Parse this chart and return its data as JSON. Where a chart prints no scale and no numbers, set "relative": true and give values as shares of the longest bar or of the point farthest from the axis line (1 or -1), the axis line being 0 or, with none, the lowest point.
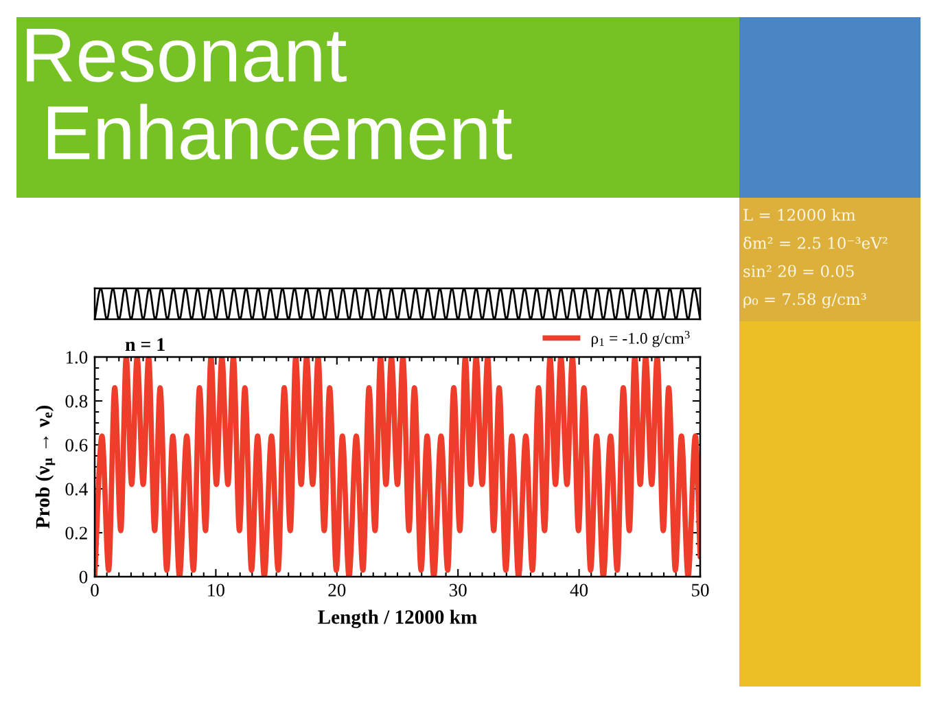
{
  "chart_data": [
    {
      "type": "line",
      "title": "Resonant\n Enhancement",
      "annotations": [
        "L = 12000 km",
        "δm² = 2.5 10⁻³eV²",
        "sin² 2θ = 0.05",
        "ρ₀ = 7.58 g/cm³"
      ],
      "relative": true,
      "categories": [
        null,
        null,
        null,
        null,
        null,
        null,
        null,
        null,
        null,
        null,
        null,
        null,
        null,
        null,
        null,
        null,
        null,
        null,
        null,
        null,
        null,
        null,
        null,
        null,
        null,
        null,
        null,
        null,
        null,
        null,
        null,
        null,
        null,
        null,
        null,
        null,
        null,
        null,
        null,
        null,
        null,
        null,
        null,
        null,
        null,
        null,
        null,
        null,
        null,
        null,
        null,
        null,
        null,
        null,
        null,
        null,
        null,
        null,
        null,
        null,
        null,
        null,
        null,
        null,
        null,
        null,
        null,
        null,
        null,
        null,
        null,
        null,
        null,
        null,
        null,
        null,
        null,
        null,
        null,
        null,
        null,
        null,
        null,
        null,
        null,
        null,
        null,
        null,
        null,
        null,
        null,
        null,
        null,
        null,
        null,
        null,
        null,
        null,
        null,
        null,
        null
      ],
      "series": [
        {
          "color": "#000000",
          "values": [
            0,
            1,
            0,
            1,
            0,
            1,
            0,
            1,
            0,
            1,
            0,
            1,
            0,
            1,
            0,
            1,
            0,
            1,
            0,
            1,
            0,
            1,
            0,
            1,
            0,
            1,
            0,
            1,
            0,
            1,
            0,
            1,
            0,
            1,
            0,
            1,
            0,
            1,
            0,
            1,
            0,
            1,
            0,
            1,
            0,
            1,
            0,
            1,
            0,
            1,
            0,
            1,
            0,
            1,
            0,
            1,
            0,
            1,
            0,
            1,
            0,
            1,
            0,
            1,
            0,
            1,
            0,
            1,
            0,
            1,
            0,
            1,
            0,
            1,
            0,
            1,
            0,
            1,
            0,
            1,
            0,
            1,
            0,
            1,
            0,
            1,
            0,
            1,
            0,
            1,
            0,
            1,
            0,
            1,
            0,
            1,
            0,
            1,
            0,
            1,
            0
          ]
        }
      ]
    },
    {
      "type": "line",
      "xlabel": "Length / 12000 km",
      "ylabel": "Prob (ν$_{μ}$ → ν$_{e}$)",
      "annotations": [
        "n = 1"
      ],
      "legend": "top right",
      "x": [
        0,
        0.6,
        1.15,
        1.65,
        2.15,
        2.6,
        3.05,
        3.5,
        4.0,
        4.45,
        4.95,
        5.4,
        5.95,
        6.45,
        7,
        7.6,
        8.15,
        8.65,
        9.15,
        9.6,
        10.05,
        10.5,
        11.0,
        11.45,
        11.95,
        12.4,
        12.95,
        13.45,
        14,
        14.6,
        15.15,
        15.65,
        16.15,
        16.6,
        17.05,
        17.5,
        18.0,
        18.45,
        18.95,
        19.4,
        19.95,
        20.45,
        21,
        21.6,
        22.15,
        22.65,
        23.15,
        23.6,
        24.05,
        24.5,
        25.0,
        25.45,
        25.95,
        26.4,
        26.95,
        27.45,
        28,
        28.6,
        29.15,
        29.65,
        30.15,
        30.6,
        31.05,
        31.5,
        32.0,
        32.45,
        32.95,
        33.4,
        33.95,
        34.45,
        35,
        35.6,
        36.15,
        36.65,
        37.15,
        37.6,
        38.05,
        38.5,
        39.0,
        39.45,
        39.95,
        40.4,
        40.95,
        41.45,
        42,
        42.6,
        43.15,
        43.65,
        44.15,
        44.6,
        45.05,
        45.5,
        46.0,
        46.45,
        46.95,
        47.4,
        47.95,
        48.45,
        49,
        49.6,
        50
      ],
      "series": [
        {
          "name": "ρ$_{1}$ = -1.0 g/cm$^{3}$",
          "color": "#ef3d2b",
          "values": [
            0,
            0.64,
            0.03,
            0.86,
            0.21,
            1.0,
            0.42,
            1.0,
            0.42,
            1.0,
            0.21,
            0.86,
            0.03,
            0.64,
            0,
            0.64,
            0.03,
            0.86,
            0.21,
            1.0,
            0.42,
            1.0,
            0.42,
            1.0,
            0.21,
            0.86,
            0.03,
            0.64,
            0,
            0.64,
            0.03,
            0.86,
            0.21,
            1.0,
            0.42,
            1.0,
            0.42,
            1.0,
            0.21,
            0.86,
            0.03,
            0.64,
            0,
            0.64,
            0.03,
            0.86,
            0.21,
            1.0,
            0.42,
            1.0,
            0.42,
            1.0,
            0.21,
            0.86,
            0.03,
            0.64,
            0,
            0.64,
            0.03,
            0.86,
            0.21,
            1.0,
            0.42,
            1.0,
            0.42,
            1.0,
            0.21,
            0.86,
            0.03,
            0.64,
            0,
            0.64,
            0.03,
            0.86,
            0.21,
            1.0,
            0.42,
            1.0,
            0.42,
            1.0,
            0.21,
            0.86,
            0.03,
            0.64,
            0,
            0.64,
            0.03,
            0.86,
            0.21,
            1.0,
            0.42,
            1.0,
            0.42,
            1.0,
            0.21,
            0.86,
            0.03,
            0.64,
            0,
            0.64,
            0.09
          ]
        }
      ],
      "xlim": [
        0,
        50
      ],
      "ylim": [
        0,
        1
      ],
      "xticks": [
        0,
        {
          "value": 1,
          "label": null
        },
        {
          "value": 2,
          "label": null
        },
        {
          "value": 3,
          "label": null
        },
        {
          "value": 4,
          "label": null
        },
        {
          "value": 5,
          "label": null
        },
        {
          "value": 6,
          "label": null
        },
        {
          "value": 7,
          "label": null
        },
        {
          "value": 8,
          "label": null
        },
        {
          "value": 9,
          "label": null
        },
        10,
        {
          "value": 11,
          "label": null
        },
        {
          "value": 12,
          "label": null
        },
        {
          "value": 13,
          "label": null
        },
        {
          "value": 14,
          "label": null
        },
        {
          "value": 15,
          "label": null
        },
        {
          "value": 16,
          "label": null
        },
        {
          "value": 17,
          "label": null
        },
        {
          "value": 18,
          "label": null
        },
        {
          "value": 19,
          "label": null
        },
        20,
        {
          "value": 21,
          "label": null
        },
        {
          "value": 22,
          "label": null
        },
        {
          "value": 23,
          "label": null
        },
        {
          "value": 24,
          "label": null
        },
        {
          "value": 25,
          "label": null
        },
        {
          "value": 26,
          "label": null
        },
        {
          "value": 27,
          "label": null
        },
        {
          "value": 28,
          "label": null
        },
        {
          "value": 29,
          "label": null
        },
        30,
        {
          "value": 31,
          "label": null
        },
        {
          "value": 32,
          "label": null
        },
        {
          "value": 33,
          "label": null
        },
        {
          "value": 34,
          "label": null
        },
        {
          "value": 35,
          "label": null
        },
        {
          "value": 36,
          "label": null
        },
        {
          "value": 37,
          "label": null
        },
        {
          "value": 38,
          "label": null
        },
        {
          "value": 39,
          "label": null
        },
        40,
        {
          "value": 41,
          "label": null
        },
        {
          "value": 42,
          "label": null
        },
        {
          "value": 43,
          "label": null
        },
        {
          "value": 44,
          "label": null
        },
        {
          "value": 45,
          "label": null
        },
        {
          "value": 46,
          "label": null
        },
        {
          "value": 47,
          "label": null
        },
        {
          "value": 48,
          "label": null
        },
        {
          "value": 49,
          "label": null
        },
        50
      ],
      "yticks": [
        0,
        {
          "value": 0.05,
          "label": null
        },
        {
          "value": 0.1,
          "label": null
        },
        {
          "value": 0.15,
          "label": null
        },
        0.2,
        {
          "value": 0.25,
          "label": null
        },
        {
          "value": 0.3,
          "label": null
        },
        {
          "value": 0.35,
          "label": null
        },
        0.4,
        {
          "value": 0.45,
          "label": null
        },
        {
          "value": 0.5,
          "label": null
        },
        {
          "value": 0.55,
          "label": null
        },
        0.6,
        {
          "value": 0.65,
          "label": null
        },
        {
          "value": 0.7,
          "label": null
        },
        {
          "value": 0.75,
          "label": null
        },
        0.8,
        {
          "value": 0.85,
          "label": null
        },
        {
          "value": 0.9,
          "label": null
        },
        {
          "value": 0.95,
          "label": null
        },
        {
          "value": 1,
          "label": "1.0"
        }
      ]
    }
  ]
}
